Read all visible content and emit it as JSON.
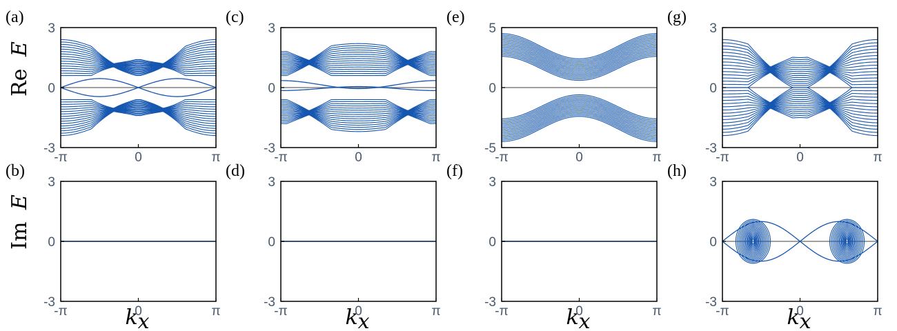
{
  "figure": {
    "row_labels": {
      "top_prefix": "Re",
      "bottom_prefix": "Im",
      "variable": "E"
    },
    "x_axis_label": {
      "symbol": "k",
      "subscript": "x"
    },
    "colors": {
      "band": "#1556b0",
      "zero_line": "#808080",
      "frame": "#000000",
      "tick_text": "#4a5a6e"
    }
  },
  "chart_data": [
    {
      "panel": "(a)",
      "type": "line",
      "quantity": "Re E",
      "xlim": [
        "-π",
        "π"
      ],
      "xticks": [
        "-π",
        "0",
        "π"
      ],
      "ylim": [
        -3,
        3
      ],
      "yticks": [
        "3",
        "0",
        "-3"
      ],
      "series": [
        {
          "kind": "bulk-band",
          "outer_edge": {
            "at_minus_pi": 2.4,
            "at_zero": 1.4,
            "at_pi": 2.4
          },
          "inner_edge": {
            "at_minus_pi": 0.6,
            "at_zero": 0.6,
            "at_pi": 0.6
          },
          "pinch_points_kx": [
            -1.0,
            1.0
          ]
        },
        {
          "kind": "bulk-band",
          "outer_edge": {
            "at_minus_pi": -2.4,
            "at_zero": -1.4,
            "at_pi": -2.4
          },
          "inner_edge": {
            "at_minus_pi": -0.6,
            "at_zero": -0.6,
            "at_pi": -0.6
          },
          "pinch_points_kx": [
            -1.0,
            1.0
          ]
        },
        {
          "kind": "edge-state",
          "crossing_kx": 0,
          "amplitude": 0.5
        }
      ]
    },
    {
      "panel": "(b)",
      "type": "line",
      "quantity": "Im E",
      "xlim": [
        "-π",
        "π"
      ],
      "xticks": [
        "-π",
        "0",
        "π"
      ],
      "ylim": [
        -3,
        3
      ],
      "yticks": [
        "3",
        "0",
        "-3"
      ],
      "series": [
        {
          "kind": "flat",
          "value": 0
        }
      ]
    },
    {
      "panel": "(c)",
      "type": "line",
      "quantity": "Re E",
      "xlim": [
        "-π",
        "π"
      ],
      "xticks": [
        "-π",
        "0",
        "π"
      ],
      "ylim": [
        -3,
        3
      ],
      "yticks": [
        "3",
        "0",
        "-3"
      ],
      "series": [
        {
          "kind": "bulk-band",
          "outer_edge": {
            "at_minus_pi": 1.8,
            "at_zero": 2.2,
            "at_pi": 1.8
          },
          "inner_edge": {
            "at_minus_pi": 0.6,
            "at_zero": 0.6,
            "at_pi": 0.6
          },
          "pinch_points_kx": [
            -2.0,
            2.0
          ]
        },
        {
          "kind": "bulk-band",
          "outer_edge": {
            "at_minus_pi": -1.8,
            "at_zero": -2.2,
            "at_pi": -1.8
          },
          "inner_edge": {
            "at_minus_pi": -0.6,
            "at_zero": -0.6,
            "at_pi": -0.6
          },
          "pinch_points_kx": [
            -2.0,
            2.0
          ]
        },
        {
          "kind": "edge-state",
          "crossing_kx": [
            "-π",
            "π"
          ],
          "amplitude": 0.4
        }
      ]
    },
    {
      "panel": "(d)",
      "type": "line",
      "quantity": "Im E",
      "xlim": [
        "-π",
        "π"
      ],
      "xticks": [
        "-π",
        "0",
        "π"
      ],
      "ylim": [
        -3,
        3
      ],
      "yticks": [
        "3",
        "0",
        "-3"
      ],
      "series": [
        {
          "kind": "flat",
          "value": 0
        }
      ]
    },
    {
      "panel": "(e)",
      "type": "line",
      "quantity": "Re E",
      "xlim": [
        "-π",
        "π"
      ],
      "xticks": [
        "-π",
        "0",
        "π"
      ],
      "ylim": [
        -5,
        5
      ],
      "yticks": [
        "5",
        "0",
        "-5"
      ],
      "series": [
        {
          "kind": "bulk-band",
          "outer_edge": {
            "at_minus_pi": 4.5,
            "at_zero": 2.4,
            "at_pi": 4.5
          },
          "inner_edge": {
            "at_minus_pi": 2.6,
            "at_zero": 0.6,
            "at_pi": 2.6
          }
        },
        {
          "kind": "bulk-band",
          "outer_edge": {
            "at_minus_pi": -4.5,
            "at_zero": -2.4,
            "at_pi": -4.5
          },
          "inner_edge": {
            "at_minus_pi": -2.6,
            "at_zero": -0.6,
            "at_pi": -2.6
          }
        }
      ]
    },
    {
      "panel": "(f)",
      "type": "line",
      "quantity": "Im E",
      "xlim": [
        "-π",
        "π"
      ],
      "xticks": [
        "-π",
        "0",
        "π"
      ],
      "ylim": [
        -3,
        3
      ],
      "yticks": [
        "3",
        "0",
        "-3"
      ],
      "series": [
        {
          "kind": "flat",
          "value": 0
        }
      ]
    },
    {
      "panel": "(g)",
      "type": "line",
      "quantity": "Re E",
      "xlim": [
        "-π",
        "π"
      ],
      "xticks": [
        "-π",
        "0",
        "π"
      ],
      "ylim": [
        -3,
        3
      ],
      "yticks": [
        "3",
        "0",
        "-3"
      ],
      "series": [
        {
          "kind": "bulk-band",
          "outer_edge": {
            "at_minus_pi": 2.4,
            "at_zero": 1.5,
            "at_pi": 2.4
          },
          "exceptional_points_kx": [
            -1.2,
            1.2
          ]
        },
        {
          "kind": "bulk-band",
          "outer_edge": {
            "at_minus_pi": -2.4,
            "at_zero": -1.5,
            "at_pi": -2.4
          },
          "exceptional_points_kx": [
            -1.2,
            1.2
          ]
        }
      ]
    },
    {
      "panel": "(h)",
      "type": "line",
      "quantity": "Im E",
      "xlim": [
        "-π",
        "π"
      ],
      "xticks": [
        "-π",
        "0",
        "π"
      ],
      "ylim": [
        -3,
        3
      ],
      "yticks": [
        "3",
        "0",
        "-3"
      ],
      "series": [
        {
          "kind": "loop-band",
          "kx_range": [
            -2.6,
            -1.2
          ],
          "max_abs_value": 1.1
        },
        {
          "kind": "loop-band",
          "kx_range": [
            1.2,
            2.6
          ],
          "max_abs_value": 1.1
        },
        {
          "kind": "edge-state",
          "crossing_kx": 0,
          "amplitude": 1.1
        }
      ]
    }
  ]
}
